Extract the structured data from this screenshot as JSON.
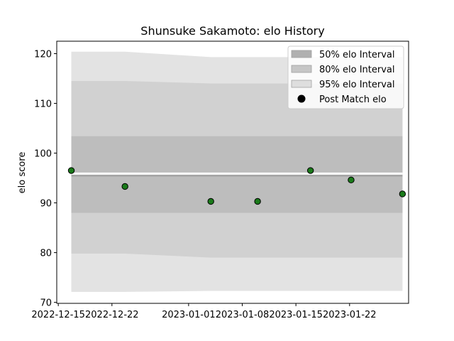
{
  "chart_data": {
    "type": "scatter",
    "title": "Shunsuke Sakamoto: elo History",
    "xlabel": "",
    "ylabel": "elo score",
    "x_ticks": [
      "2022-12-15",
      "2022-12-22",
      "2023-01-01",
      "2023-01-08",
      "2023-01-15",
      "2023-01-22"
    ],
    "x_tick_days": [
      0,
      7,
      17,
      24,
      31,
      38
    ],
    "y_ticks": [
      70,
      80,
      90,
      100,
      110,
      120
    ],
    "xlim_days": [
      -0.2,
      45.7
    ],
    "ylim": [
      69.8,
      122.5
    ],
    "grid": false,
    "legend_position": "top-right",
    "bands": {
      "x_days": [
        1.7,
        8.7,
        19.9,
        31.0,
        38.0,
        44.9
      ],
      "ci95": {
        "name": "95% elo Interval",
        "lower": [
          72.1,
          72.1,
          72.3,
          72.3,
          72.3,
          72.3
        ],
        "upper": [
          120.4,
          120.4,
          119.3,
          119.3,
          119.3,
          119.3
        ]
      },
      "ci80": {
        "name": "80% elo Interval",
        "lower": [
          79.8,
          79.8,
          79.0,
          79.0,
          79.0,
          79.0
        ],
        "upper": [
          114.5,
          114.5,
          114.0,
          114.0,
          114.0,
          114.0
        ]
      },
      "ci50": {
        "name": "50% elo Interval",
        "lower": [
          88.0,
          88.0,
          88.0,
          88.0,
          88.0,
          88.0
        ],
        "upper": [
          103.4,
          103.4,
          103.4,
          103.4,
          103.4,
          103.4
        ]
      }
    },
    "mean_line": {
      "x_days": [
        1.7,
        44.9
      ],
      "y": [
        95.6,
        95.6
      ]
    },
    "series": [
      {
        "name": "Post Match elo",
        "x_days": [
          1.7,
          8.7,
          19.9,
          26.0,
          32.9,
          38.2,
          44.9
        ],
        "y": [
          96.5,
          93.3,
          90.3,
          90.3,
          96.5,
          94.6,
          91.8
        ]
      }
    ],
    "colors": {
      "ci95": "#e3e3e3",
      "ci80": "#d1d1d1",
      "ci50": "#bdbdbd",
      "points": "#1a7a1a",
      "mean": "#a0a0a0"
    }
  }
}
